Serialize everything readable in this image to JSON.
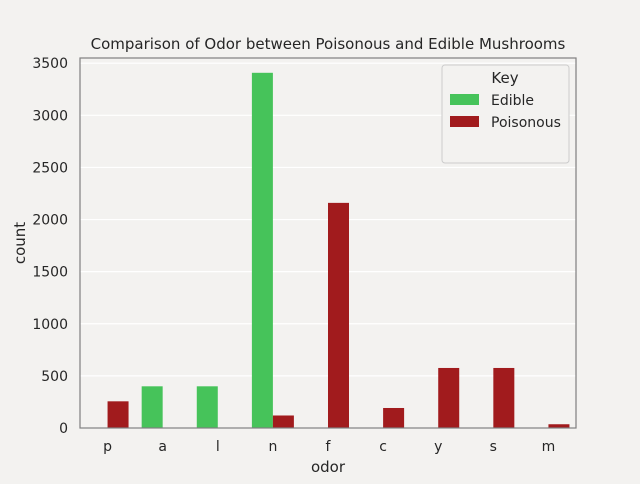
{
  "colors": {
    "edible": "#46c35a",
    "poisonous": "#a11b1d",
    "background": "#f3f2f0",
    "gridline": "#ffffff",
    "frame": "#7f7f7f"
  },
  "chart_data": {
    "type": "bar",
    "title": "Comparison of Odor between Poisonous and Edible Mushrooms",
    "xlabel": "odor",
    "ylabel": "count",
    "categories": [
      "p",
      "a",
      "l",
      "n",
      "f",
      "c",
      "y",
      "s",
      "m"
    ],
    "series": [
      {
        "name": "Edible",
        "color": "#46c35a",
        "values": [
          0,
          400,
          400,
          3408,
          0,
          0,
          0,
          0,
          0
        ]
      },
      {
        "name": "Poisonous",
        "color": "#a11b1d",
        "values": [
          256,
          0,
          0,
          120,
          2160,
          192,
          576,
          576,
          36
        ]
      }
    ],
    "ylim": [
      0,
      3550
    ],
    "yticks": [
      0,
      500,
      1000,
      1500,
      2000,
      2500,
      3000,
      3500
    ],
    "grid": "horizontal",
    "legend": {
      "title": "Key",
      "placement": "top-right"
    }
  }
}
